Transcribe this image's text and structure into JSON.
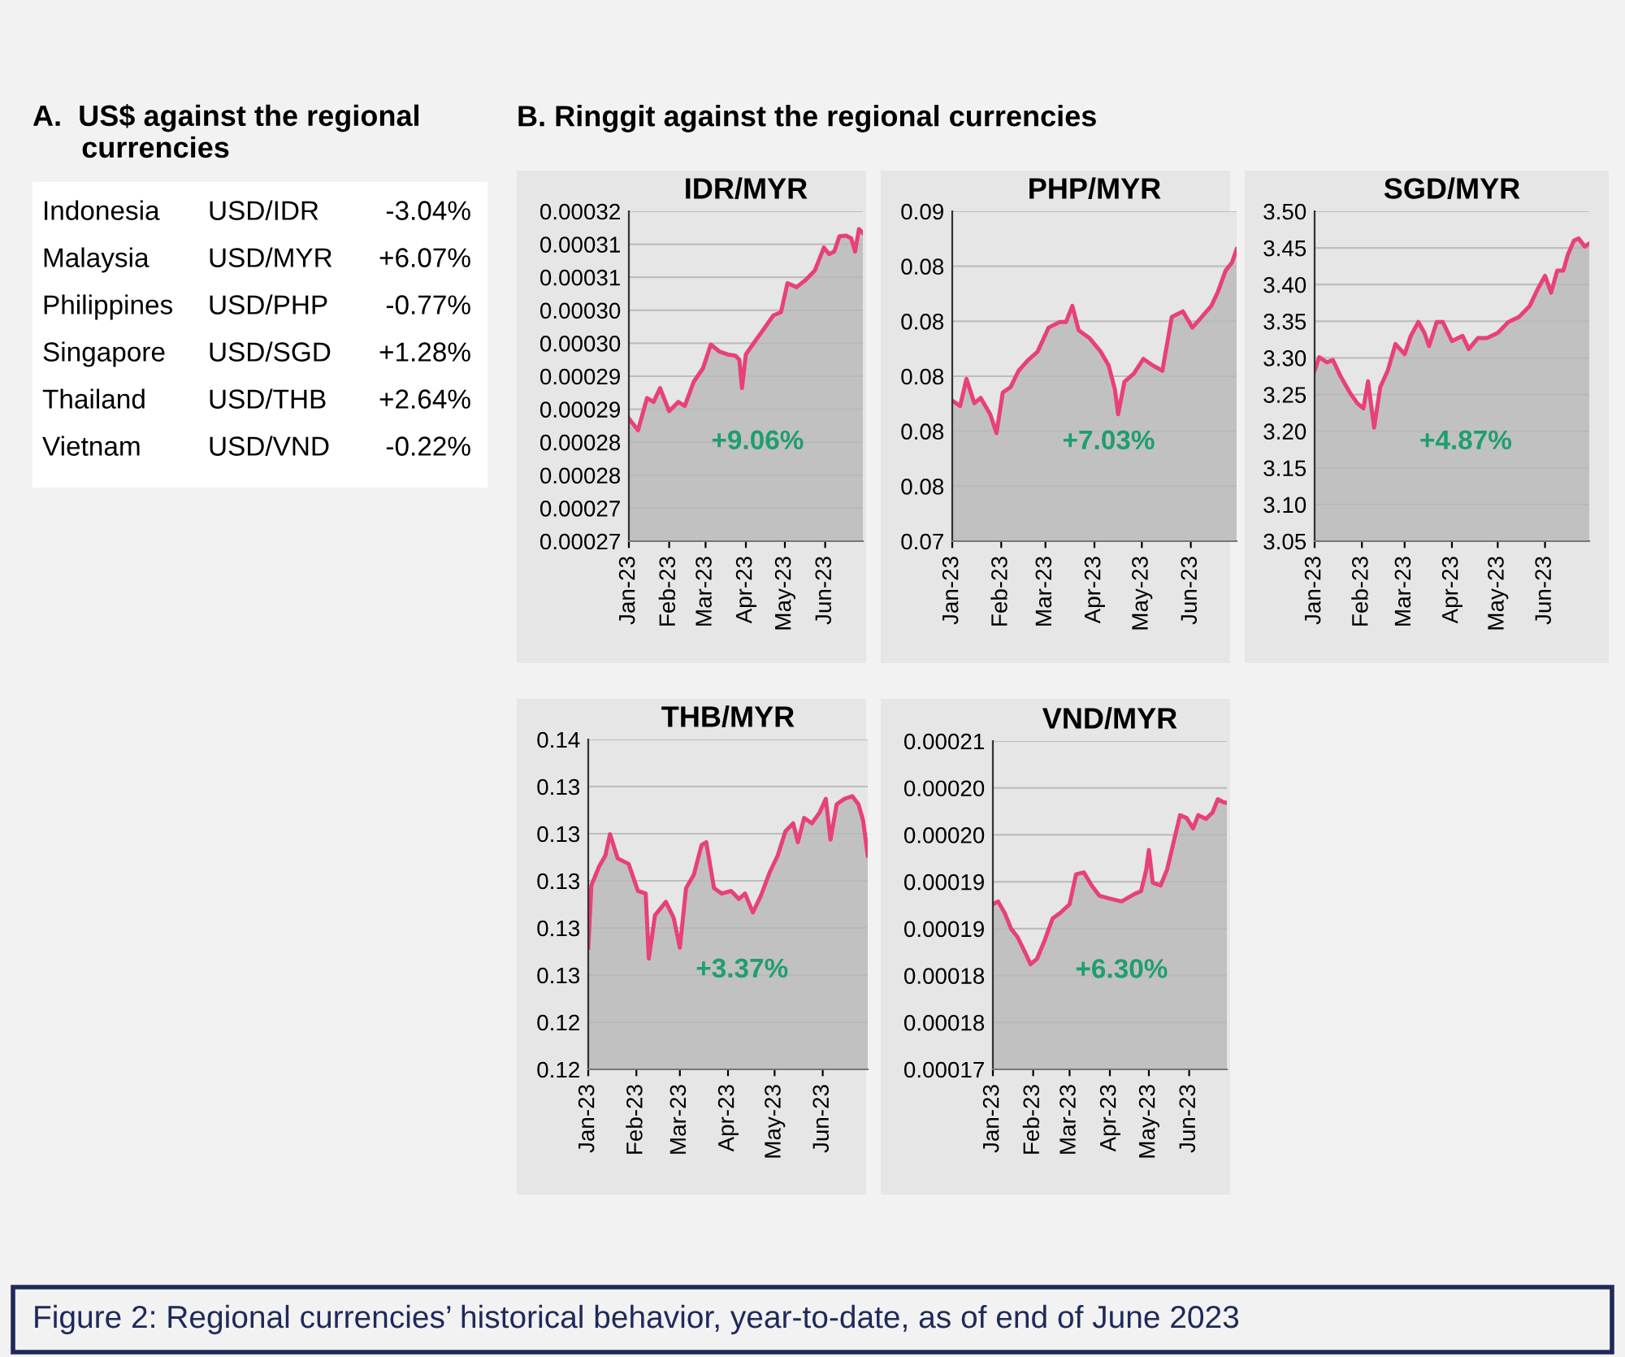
{
  "chart_data": [
    {
      "type": "other",
      "title": "A.  US$ against the regional\n      currencies",
      "annotations": [
        "Indonesia",
        "USD/IDR",
        "-3.04%",
        "Malaysia",
        "USD/MYR",
        "+6.07%",
        "Philippines",
        "USD/PHP",
        "-0.77%",
        "Singapore",
        "USD/SGD",
        "+1.28%",
        "Thailand",
        "USD/THB",
        "+2.64%",
        "Vietnam",
        "USD/VND",
        "-0.22%"
      ]
    },
    {
      "type": "area",
      "title": "IDR/MYR",
      "subtitle": "B. Ringgit against the regional currencies",
      "grid": "y",
      "annotations": [
        "+9.06%"
      ],
      "xlim": [
        "2023-01-01",
        "2023-06-30"
      ],
      "xticks": [
        {
          "value": "2023-01-01",
          "label": "Jan-23"
        },
        {
          "value": "2023-02-01",
          "label": "Feb-23"
        },
        {
          "value": "2023-03-01",
          "label": "Mar-23"
        },
        {
          "value": "2023-04-01",
          "label": "Apr-23"
        },
        {
          "value": "2023-05-01",
          "label": "May-23"
        },
        {
          "value": "2023-06-01",
          "label": "Jun-23"
        }
      ],
      "ylim": [
        0.000265,
        0.000315
      ],
      "yticks": [
        {
          "value": 0.000265,
          "label": "0.00027"
        },
        {
          "value": 0.00027,
          "label": "0.00027"
        },
        {
          "value": 0.000275,
          "label": "0.00028"
        },
        {
          "value": 0.00028,
          "label": "0.00028"
        },
        {
          "value": 0.000285,
          "label": "0.00029"
        },
        {
          "value": 0.00029,
          "label": "0.00029"
        },
        {
          "value": 0.000295,
          "label": "0.00030"
        },
        {
          "value": 0.0003,
          "label": "0.00030"
        },
        {
          "value": 0.000305,
          "label": "0.00031"
        },
        {
          "value": 0.00031,
          "label": "0.00031"
        },
        {
          "value": 0.000315,
          "label": "0.00032"
        }
      ],
      "x": [
        "2023-01-01",
        "2023-01-08",
        "2023-01-15",
        "2023-01-20",
        "2023-01-25",
        "2023-02-01",
        "2023-02-08",
        "2023-02-13",
        "2023-02-20",
        "2023-02-27",
        "2023-03-05",
        "2023-03-12",
        "2023-03-18",
        "2023-03-24",
        "2023-03-27",
        "2023-03-29",
        "2023-04-01",
        "2023-04-08",
        "2023-04-15",
        "2023-04-22",
        "2023-04-28",
        "2023-05-03",
        "2023-05-10",
        "2023-05-17",
        "2023-05-24",
        "2023-05-31",
        "2023-06-04",
        "2023-06-08",
        "2023-06-12",
        "2023-06-17",
        "2023-06-21",
        "2023-06-24",
        "2023-06-27",
        "2023-06-30"
      ],
      "series": [
        {
          "color": "#e8407a",
          "values": [
            0.0002836,
            0.0002818,
            0.0002867,
            0.0002861,
            0.0002882,
            0.0002847,
            0.0002861,
            0.0002855,
            0.0002892,
            0.0002912,
            0.0002948,
            0.0002937,
            0.0002933,
            0.0002931,
            0.0002925,
            0.0002882,
            0.0002933,
            0.0002953,
            0.0002972,
            0.0002992,
            0.0002997,
            0.0003041,
            0.0003035,
            0.0003046,
            0.000306,
            0.0003095,
            0.0003085,
            0.0003089,
            0.0003112,
            0.0003113,
            0.0003109,
            0.0003089,
            0.0003123,
            0.0003117
          ]
        }
      ]
    },
    {
      "type": "area",
      "title": "PHP/MYR",
      "grid": "y",
      "annotations": [
        "+7.03%"
      ],
      "xlim": [
        "2023-01-01",
        "2023-06-30"
      ],
      "xticks": [
        {
          "value": "2023-01-01",
          "label": "Jan-23"
        },
        {
          "value": "2023-02-01",
          "label": "Feb-23"
        },
        {
          "value": "2023-03-01",
          "label": "Mar-23"
        },
        {
          "value": "2023-04-01",
          "label": "Apr-23"
        },
        {
          "value": "2023-05-01",
          "label": "May-23"
        },
        {
          "value": "2023-06-01",
          "label": "Jun-23"
        }
      ],
      "ylim": [
        0.074,
        0.086
      ],
      "yticks": [
        {
          "value": 0.074,
          "label": "0.07"
        },
        {
          "value": 0.076,
          "label": "0.08"
        },
        {
          "value": 0.078,
          "label": "0.08"
        },
        {
          "value": 0.08,
          "label": "0.08"
        },
        {
          "value": 0.082,
          "label": "0.08"
        },
        {
          "value": 0.084,
          "label": "0.08"
        },
        {
          "value": 0.086,
          "label": "0.09"
        }
      ],
      "x": [
        "2023-01-01",
        "2023-01-06",
        "2023-01-10",
        "2023-01-15",
        "2023-01-19",
        "2023-01-25",
        "2023-01-29",
        "2023-02-02",
        "2023-02-07",
        "2023-02-12",
        "2023-02-18",
        "2023-02-24",
        "2023-03-03",
        "2023-03-10",
        "2023-03-14",
        "2023-03-18",
        "2023-03-22",
        "2023-03-29",
        "2023-04-05",
        "2023-04-10",
        "2023-04-14",
        "2023-04-16",
        "2023-04-20",
        "2023-04-26",
        "2023-05-02",
        "2023-05-08",
        "2023-05-14",
        "2023-05-20",
        "2023-05-27",
        "2023-06-02",
        "2023-06-08",
        "2023-06-14",
        "2023-06-18",
        "2023-06-23",
        "2023-06-27",
        "2023-06-30"
      ],
      "series": [
        {
          "color": "#e8407a",
          "values": [
            0.07911,
            0.07892,
            0.0799,
            0.07902,
            0.07921,
            0.07862,
            0.07793,
            0.07941,
            0.07961,
            0.0802,
            0.08059,
            0.08089,
            0.08177,
            0.08197,
            0.08197,
            0.08256,
            0.08167,
            0.08138,
            0.08089,
            0.08039,
            0.07951,
            0.07862,
            0.0798,
            0.0801,
            0.08063,
            0.08039,
            0.0802,
            0.08216,
            0.08236,
            0.08177,
            0.08216,
            0.08256,
            0.08305,
            0.08384,
            0.08413,
            0.08462
          ]
        }
      ]
    },
    {
      "type": "area",
      "title": "SGD/MYR",
      "grid": "y",
      "annotations": [
        "+4.87%"
      ],
      "xlim": [
        "2023-01-01",
        "2023-06-30"
      ],
      "xticks": [
        {
          "value": "2023-01-01",
          "label": "Jan-23"
        },
        {
          "value": "2023-02-01",
          "label": "Feb-23"
        },
        {
          "value": "2023-03-01",
          "label": "Mar-23"
        },
        {
          "value": "2023-04-01",
          "label": "Apr-23"
        },
        {
          "value": "2023-05-01",
          "label": "May-23"
        },
        {
          "value": "2023-06-01",
          "label": "Jun-23"
        }
      ],
      "ylim": [
        3.05,
        3.5
      ],
      "yticks": [
        {
          "value": 3.05,
          "label": "3.05"
        },
        {
          "value": 3.1,
          "label": "3.10"
        },
        {
          "value": 3.15,
          "label": "3.15"
        },
        {
          "value": 3.2,
          "label": "3.20"
        },
        {
          "value": 3.25,
          "label": "3.25"
        },
        {
          "value": 3.3,
          "label": "3.30"
        },
        {
          "value": 3.35,
          "label": "3.35"
        },
        {
          "value": 3.4,
          "label": "3.40"
        },
        {
          "value": 3.45,
          "label": "3.45"
        },
        {
          "value": 3.5,
          "label": "3.50"
        }
      ],
      "x": [
        "2023-01-01",
        "2023-01-04",
        "2023-01-09",
        "2023-01-13",
        "2023-01-18",
        "2023-01-24",
        "2023-01-29",
        "2023-02-02",
        "2023-02-05",
        "2023-02-09",
        "2023-02-13",
        "2023-02-18",
        "2023-02-23",
        "2023-03-01",
        "2023-03-05",
        "2023-03-10",
        "2023-03-14",
        "2023-03-17",
        "2023-03-22",
        "2023-03-26",
        "2023-04-01",
        "2023-04-08",
        "2023-04-12",
        "2023-04-18",
        "2023-04-24",
        "2023-05-01",
        "2023-05-08",
        "2023-05-15",
        "2023-05-22",
        "2023-05-27",
        "2023-06-01",
        "2023-06-05",
        "2023-06-09",
        "2023-06-13",
        "2023-06-16",
        "2023-06-20",
        "2023-06-23",
        "2023-06-27",
        "2023-06-30"
      ],
      "series": [
        {
          "color": "#e8407a",
          "values": [
            3.283,
            3.301,
            3.294,
            3.297,
            3.275,
            3.253,
            3.238,
            3.231,
            3.268,
            3.205,
            3.26,
            3.283,
            3.319,
            3.305,
            3.33,
            3.349,
            3.334,
            3.316,
            3.349,
            3.349,
            3.323,
            3.33,
            3.312,
            3.327,
            3.327,
            3.334,
            3.349,
            3.356,
            3.371,
            3.393,
            3.412,
            3.389,
            3.419,
            3.419,
            3.441,
            3.46,
            3.463,
            3.452,
            3.456
          ]
        }
      ]
    },
    {
      "type": "area",
      "title": "THB/MYR",
      "grid": "y",
      "annotations": [
        "+3.37%"
      ],
      "xlim": [
        "2023-01-01",
        "2023-06-30"
      ],
      "xticks": [
        {
          "value": "2023-01-01",
          "label": "Jan-23"
        },
        {
          "value": "2023-02-01",
          "label": "Feb-23"
        },
        {
          "value": "2023-03-01",
          "label": "Mar-23"
        },
        {
          "value": "2023-04-01",
          "label": "Apr-23"
        },
        {
          "value": "2023-05-01",
          "label": "May-23"
        },
        {
          "value": "2023-06-01",
          "label": "Jun-23"
        }
      ],
      "ylim": [
        0.122,
        0.136
      ],
      "yticks": [
        {
          "value": 0.122,
          "label": "0.12"
        },
        {
          "value": 0.124,
          "label": "0.12"
        },
        {
          "value": 0.126,
          "label": "0.13"
        },
        {
          "value": 0.128,
          "label": "0.13"
        },
        {
          "value": 0.13,
          "label": "0.13"
        },
        {
          "value": 0.132,
          "label": "0.13"
        },
        {
          "value": 0.134,
          "label": "0.13"
        },
        {
          "value": 0.136,
          "label": "0.14"
        }
      ],
      "x": [
        "2023-01-01",
        "2023-01-03",
        "2023-01-08",
        "2023-01-12",
        "2023-01-15",
        "2023-01-20",
        "2023-01-27",
        "2023-02-02",
        "2023-02-07",
        "2023-02-09",
        "2023-02-13",
        "2023-02-20",
        "2023-02-25",
        "2023-03-01",
        "2023-03-05",
        "2023-03-10",
        "2023-03-15",
        "2023-03-18",
        "2023-03-23",
        "2023-03-28",
        "2023-04-03",
        "2023-04-08",
        "2023-04-12",
        "2023-04-17",
        "2023-04-22",
        "2023-04-28",
        "2023-05-03",
        "2023-05-08",
        "2023-05-13",
        "2023-05-16",
        "2023-05-20",
        "2023-05-25",
        "2023-05-30",
        "2023-06-03",
        "2023-06-06",
        "2023-06-10",
        "2023-06-15",
        "2023-06-20",
        "2023-06-24",
        "2023-06-27",
        "2023-06-30"
      ],
      "series": [
        {
          "color": "#e8407a",
          "values": [
            0.12716,
            0.1298,
            0.13061,
            0.13107,
            0.13198,
            0.13095,
            0.13072,
            0.12957,
            0.12946,
            0.1267,
            0.12854,
            0.12911,
            0.12843,
            0.12716,
            0.12969,
            0.13026,
            0.13152,
            0.13164,
            0.12969,
            0.12946,
            0.12957,
            0.12923,
            0.12946,
            0.12866,
            0.12934,
            0.13038,
            0.13107,
            0.1321,
            0.13244,
            0.13164,
            0.13267,
            0.13244,
            0.1329,
            0.13348,
            0.13175,
            0.13325,
            0.13348,
            0.13359,
            0.13325,
            0.13256,
            0.13107
          ]
        }
      ]
    },
    {
      "type": "area",
      "title": "VND/MYR",
      "grid": "y",
      "annotations": [
        "+6.30%",
        "Figure 2: Regional currencies’ historical behavior, year-to-date, as of end of June 2023"
      ],
      "xlim": [
        "2023-01-01",
        "2023-06-30"
      ],
      "xticks": [
        {
          "value": "2023-01-01",
          "label": "Jan-23"
        },
        {
          "value": "2023-02-01",
          "label": "Feb-23"
        },
        {
          "value": "2023-03-01",
          "label": "Mar-23"
        },
        {
          "value": "2023-04-01",
          "label": "Apr-23"
        },
        {
          "value": "2023-05-01",
          "label": "May-23"
        },
        {
          "value": "2023-06-01",
          "label": "Jun-23"
        }
      ],
      "ylim": [
        0.00017,
        0.000205
      ],
      "yticks": [
        {
          "value": 0.00017,
          "label": "0.00017"
        },
        {
          "value": 0.000175,
          "label": "0.00018"
        },
        {
          "value": 0.00018,
          "label": "0.00018"
        },
        {
          "value": 0.000185,
          "label": "0.00019"
        },
        {
          "value": 0.00019,
          "label": "0.00019"
        },
        {
          "value": 0.000195,
          "label": "0.00020"
        },
        {
          "value": 0.0002,
          "label": "0.00020"
        },
        {
          "value": 0.000205,
          "label": "0.00021"
        }
      ],
      "x": [
        "2023-01-01",
        "2023-01-05",
        "2023-01-10",
        "2023-01-15",
        "2023-01-20",
        "2023-01-26",
        "2023-01-30",
        "2023-02-04",
        "2023-02-10",
        "2023-02-16",
        "2023-02-22",
        "2023-03-01",
        "2023-03-06",
        "2023-03-12",
        "2023-03-18",
        "2023-03-24",
        "2023-04-01",
        "2023-04-10",
        "2023-04-20",
        "2023-04-25",
        "2023-04-29",
        "2023-05-01",
        "2023-05-04",
        "2023-05-10",
        "2023-05-15",
        "2023-05-20",
        "2023-05-25",
        "2023-05-30",
        "2023-06-04",
        "2023-06-08",
        "2023-06-14",
        "2023-06-19",
        "2023-06-23",
        "2023-06-27",
        "2023-06-30"
      ],
      "series": [
        {
          "color": "#e8407a",
          "values": [
            0.0001876,
            0.0001879,
            0.0001867,
            0.000185,
            0.0001841,
            0.0001824,
            0.0001812,
            0.0001818,
            0.0001838,
            0.0001861,
            0.0001867,
            0.0001876,
            0.0001908,
            0.000191,
            0.0001896,
            0.0001885,
            0.0001882,
            0.0001879,
            0.0001887,
            0.000189,
            0.0001913,
            0.0001934,
            0.0001899,
            0.0001896,
            0.0001913,
            0.0001942,
            0.0001971,
            0.0001968,
            0.0001957,
            0.0001971,
            0.0001967,
            0.0001974,
            0.0001988,
            0.0001985,
            0.0001984
          ]
        }
      ]
    }
  ]
}
